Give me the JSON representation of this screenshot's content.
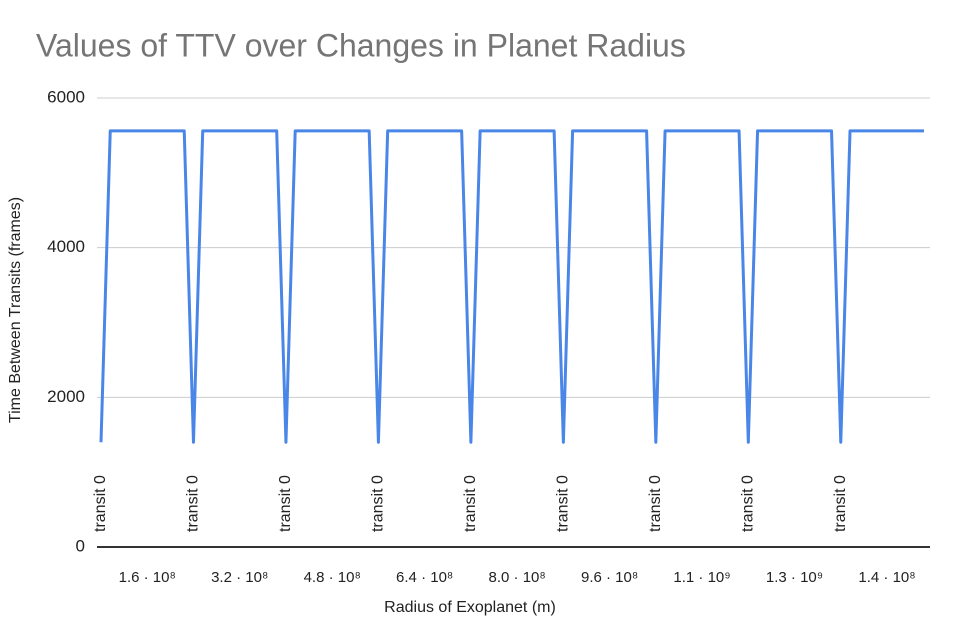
{
  "chart_data": {
    "type": "line",
    "title": "Values of TTV over Changes in Planet Radius",
    "x_label": "Radius of Exoplanet (m)",
    "y_label": "Time Between Transits (frames)",
    "categories": [
      null,
      null,
      null,
      null,
      null,
      "1.6 · 10⁸",
      null,
      null,
      null,
      null,
      null,
      null,
      null,
      null,
      null,
      "3.2 · 10⁸",
      null,
      null,
      null,
      null,
      null,
      null,
      null,
      null,
      null,
      "4.8 · 10⁸",
      null,
      null,
      null,
      null,
      null,
      null,
      null,
      null,
      null,
      "6.4 · 10⁸",
      null,
      null,
      null,
      null,
      null,
      null,
      null,
      null,
      null,
      "8.0 · 10⁸",
      null,
      null,
      null,
      null,
      null,
      null,
      null,
      null,
      null,
      "9.6 · 10⁸",
      null,
      null,
      null,
      null,
      null,
      null,
      null,
      null,
      null,
      "1.1 · 10⁹",
      null,
      null,
      null,
      null,
      null,
      null,
      null,
      null,
      null,
      "1.3 · 10⁹",
      null,
      null,
      null,
      null,
      null,
      null,
      null,
      null,
      null,
      "1.4 · 10⁸",
      null,
      null,
      null,
      null
    ],
    "annotations": [
      "transit 0",
      null,
      null,
      null,
      null,
      null,
      null,
      null,
      null,
      null,
      "transit 0",
      null,
      null,
      null,
      null,
      null,
      null,
      null,
      null,
      null,
      "transit 0",
      null,
      null,
      null,
      null,
      null,
      null,
      null,
      null,
      null,
      "transit 0",
      null,
      null,
      null,
      null,
      null,
      null,
      null,
      null,
      null,
      "transit 0",
      null,
      null,
      null,
      null,
      null,
      null,
      null,
      null,
      null,
      "transit 0",
      null,
      null,
      null,
      null,
      null,
      null,
      null,
      null,
      null,
      "transit 0",
      null,
      null,
      null,
      null,
      null,
      null,
      null,
      null,
      null,
      "transit 0",
      null,
      null,
      null,
      null,
      null,
      null,
      null,
      null,
      null,
      "transit 0",
      null,
      null,
      null,
      null,
      null,
      null,
      null,
      null,
      null
    ],
    "series": [
      {
        "name": "TTV",
        "color": "#4a86e8",
        "values": [
          1400,
          5560,
          5560,
          5560,
          5560,
          5560,
          5560,
          5560,
          5560,
          5560,
          1400,
          5560,
          5560,
          5560,
          5560,
          5560,
          5560,
          5560,
          5560,
          5560,
          1400,
          5560,
          5560,
          5560,
          5560,
          5560,
          5560,
          5560,
          5560,
          5560,
          1400,
          5560,
          5560,
          5560,
          5560,
          5560,
          5560,
          5560,
          5560,
          5560,
          1400,
          5560,
          5560,
          5560,
          5560,
          5560,
          5560,
          5560,
          5560,
          5560,
          1400,
          5560,
          5560,
          5560,
          5560,
          5560,
          5560,
          5560,
          5560,
          5560,
          1400,
          5560,
          5560,
          5560,
          5560,
          5560,
          5560,
          5560,
          5560,
          5560,
          1400,
          5560,
          5560,
          5560,
          5560,
          5560,
          5560,
          5560,
          5560,
          5560,
          1400,
          5560,
          5560,
          5560,
          5560,
          5560,
          5560,
          5560,
          5560,
          5560
        ]
      }
    ],
    "ylim": [
      0,
      6000
    ],
    "yticks": [
      0,
      2000,
      4000,
      6000
    ],
    "grid": true
  }
}
